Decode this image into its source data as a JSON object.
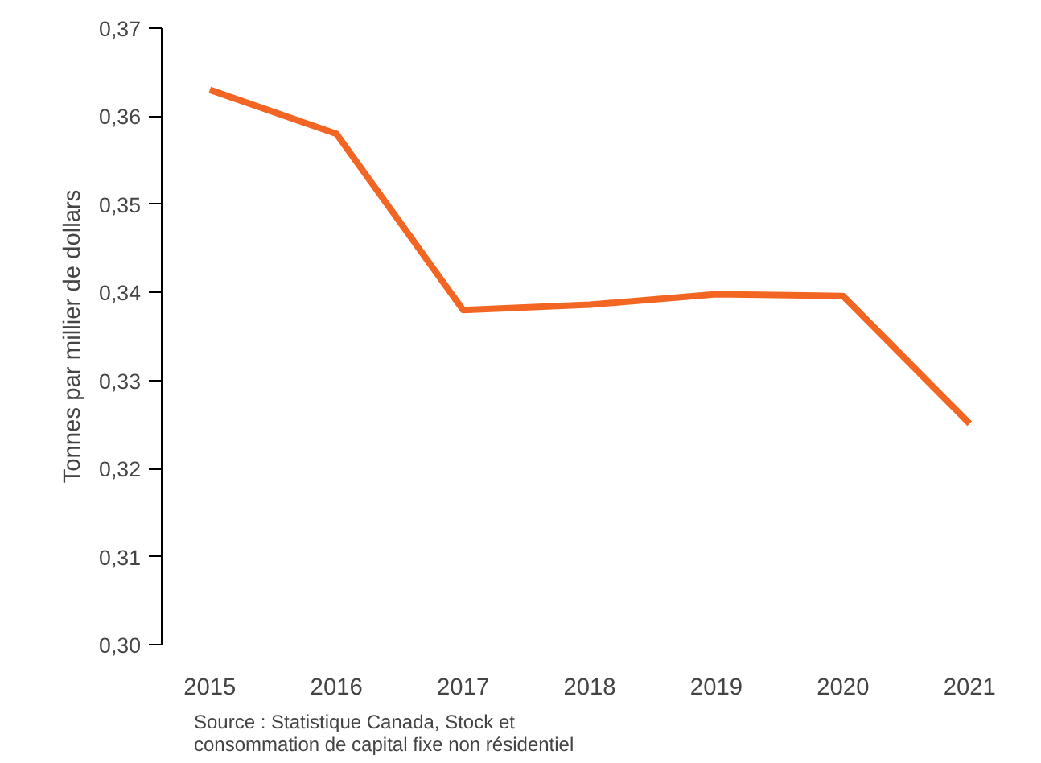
{
  "chart_data": {
    "type": "line",
    "ylabel": "Tonnes par millier de dollars",
    "categories": [
      "2015",
      "2016",
      "2017",
      "2018",
      "2019",
      "2020",
      "2021"
    ],
    "series": [
      {
        "color": "#f26522",
        "values": [
          0.363,
          0.358,
          0.338,
          0.3386,
          0.3398,
          0.3396,
          0.3251
        ]
      }
    ],
    "ylim": [
      0.3,
      0.37
    ],
    "yticks": [
      {
        "value": 0.3,
        "label": "0,30"
      },
      {
        "value": 0.31,
        "label": "0,31"
      },
      {
        "value": 0.32,
        "label": "0,32"
      },
      {
        "value": 0.33,
        "label": "0,33"
      },
      {
        "value": 0.34,
        "label": "0,34"
      },
      {
        "value": 0.35,
        "label": "0,35"
      },
      {
        "value": 0.36,
        "label": "0,36"
      },
      {
        "value": 0.37,
        "label": "0,37"
      }
    ],
    "line_style": "solid",
    "annotations": [
      "Source : Statistique Canada, Stock et\nconsommation de capital fixe non résidentiel"
    ]
  }
}
